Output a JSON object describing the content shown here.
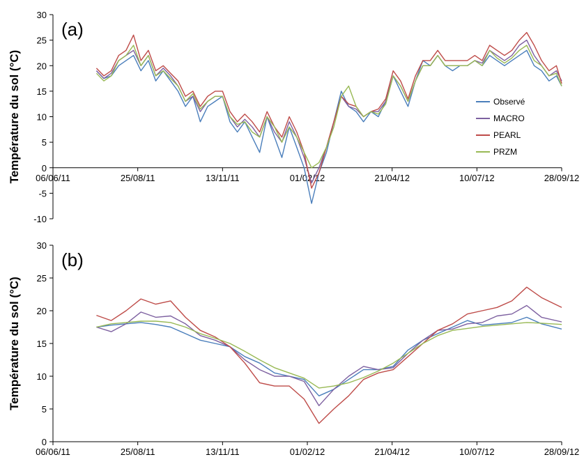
{
  "colors": {
    "observe": "#4a7ebb",
    "macro": "#7d60a0",
    "pearl": "#be4b48",
    "przm": "#98b954"
  },
  "chart_data": [
    {
      "type": "line",
      "panel_label": "(a)",
      "title": "",
      "xlabel": "",
      "ylabel": "Température du sol (°C)",
      "x_tick_labels": [
        "06/06/11",
        "25/08/11",
        "13/11/11",
        "01/02/12",
        "21/04/12",
        "10/07/12",
        "28/09/12"
      ],
      "x_tick_dates": [
        "2011-06-06",
        "2011-08-25",
        "2011-11-13",
        "2012-02-01",
        "2012-04-21",
        "2012-07-10",
        "2012-09-28"
      ],
      "ylim": [
        -10,
        30
      ],
      "y_ticks": [
        -10,
        -5,
        0,
        5,
        10,
        15,
        20,
        25,
        30
      ],
      "legend": {
        "position": "right",
        "entries": [
          "Observé",
          "MACRO",
          "PEARL",
          "PRZM"
        ]
      },
      "series": [
        {
          "name": "Observé",
          "color_key": "observe",
          "x": [
            "2011-07-17",
            "2011-07-24",
            "2011-07-31",
            "2011-08-07",
            "2011-08-14",
            "2011-08-21",
            "2011-08-28",
            "2011-09-04",
            "2011-09-11",
            "2011-09-18",
            "2011-09-25",
            "2011-10-02",
            "2011-10-09",
            "2011-10-16",
            "2011-10-23",
            "2011-10-30",
            "2011-11-06",
            "2011-11-13",
            "2011-11-20",
            "2011-11-27",
            "2011-12-04",
            "2011-12-11",
            "2011-12-18",
            "2011-12-25",
            "2012-01-01",
            "2012-01-08",
            "2012-01-15",
            "2012-01-22",
            "2012-01-29",
            "2012-02-05",
            "2012-02-12",
            "2012-02-19",
            "2012-02-26",
            "2012-03-04",
            "2012-03-11",
            "2012-03-18",
            "2012-03-25",
            "2012-04-01",
            "2012-04-08",
            "2012-04-15",
            "2012-04-22",
            "2012-04-29",
            "2012-05-06",
            "2012-05-13",
            "2012-05-20",
            "2012-05-27",
            "2012-06-03",
            "2012-06-10",
            "2012-06-17",
            "2012-06-24",
            "2012-07-01",
            "2012-07-08",
            "2012-07-15",
            "2012-07-22",
            "2012-07-29",
            "2012-08-05",
            "2012-08-12",
            "2012-08-19",
            "2012-08-26",
            "2012-09-02",
            "2012-09-09",
            "2012-09-16",
            "2012-09-23",
            "2012-09-28"
          ],
          "y": [
            19,
            17.5,
            18,
            20,
            21,
            22,
            19,
            21,
            17,
            19,
            17,
            15,
            12,
            14,
            9,
            12,
            13,
            14,
            9,
            7,
            9,
            6,
            3,
            10,
            6,
            2,
            8,
            4,
            0,
            -7,
            -1,
            3,
            9,
            15,
            12,
            11,
            9,
            11,
            10,
            13,
            18,
            15,
            12,
            17,
            21,
            20,
            22,
            20,
            19,
            20,
            20,
            21,
            20,
            22,
            21,
            20,
            21,
            22,
            23,
            20,
            19,
            17,
            18,
            16
          ]
        },
        {
          "name": "MACRO",
          "color_key": "macro",
          "x": [
            "2011-07-17",
            "2011-07-24",
            "2011-07-31",
            "2011-08-07",
            "2011-08-14",
            "2011-08-21",
            "2011-08-28",
            "2011-09-04",
            "2011-09-11",
            "2011-09-18",
            "2011-09-25",
            "2011-10-02",
            "2011-10-09",
            "2011-10-16",
            "2011-10-23",
            "2011-10-30",
            "2011-11-06",
            "2011-11-13",
            "2011-11-20",
            "2011-11-27",
            "2011-12-04",
            "2011-12-11",
            "2011-12-18",
            "2011-12-25",
            "2012-01-01",
            "2012-01-08",
            "2012-01-15",
            "2012-01-22",
            "2012-01-29",
            "2012-02-05",
            "2012-02-12",
            "2012-02-19",
            "2012-02-26",
            "2012-03-04",
            "2012-03-11",
            "2012-03-18",
            "2012-03-25",
            "2012-04-01",
            "2012-04-08",
            "2012-04-15",
            "2012-04-22",
            "2012-04-29",
            "2012-05-06",
            "2012-05-13",
            "2012-05-20",
            "2012-05-27",
            "2012-06-03",
            "2012-06-10",
            "2012-06-17",
            "2012-06-24",
            "2012-07-01",
            "2012-07-08",
            "2012-07-15",
            "2012-07-22",
            "2012-07-29",
            "2012-08-05",
            "2012-08-12",
            "2012-08-19",
            "2012-08-26",
            "2012-09-02",
            "2012-09-09",
            "2012-09-16",
            "2012-09-23",
            "2012-09-28"
          ],
          "y": [
            19,
            17.5,
            18.5,
            21,
            22,
            23,
            20,
            22,
            18,
            19.5,
            18,
            16,
            13,
            14,
            11,
            13,
            14,
            14,
            10,
            8,
            9.5,
            8,
            6,
            10,
            7,
            5,
            9,
            6,
            2,
            -3,
            0,
            4,
            9,
            14,
            12,
            11.5,
            10,
            11,
            11,
            13,
            18,
            16,
            13,
            17,
            20,
            20,
            22,
            20,
            20,
            20,
            20,
            21,
            20.5,
            23,
            22,
            21,
            22,
            24,
            25,
            22,
            20,
            18,
            19,
            17
          ]
        },
        {
          "name": "PEARL",
          "color_key": "pearl",
          "x": [
            "2011-07-17",
            "2011-07-24",
            "2011-07-31",
            "2011-08-07",
            "2011-08-14",
            "2011-08-21",
            "2011-08-28",
            "2011-09-04",
            "2011-09-11",
            "2011-09-18",
            "2011-09-25",
            "2011-10-02",
            "2011-10-09",
            "2011-10-16",
            "2011-10-23",
            "2011-10-30",
            "2011-11-06",
            "2011-11-13",
            "2011-11-20",
            "2011-11-27",
            "2011-12-04",
            "2011-12-11",
            "2011-12-18",
            "2011-12-25",
            "2012-01-01",
            "2012-01-08",
            "2012-01-15",
            "2012-01-22",
            "2012-01-29",
            "2012-02-05",
            "2012-02-12",
            "2012-02-19",
            "2012-02-26",
            "2012-03-04",
            "2012-03-11",
            "2012-03-18",
            "2012-03-25",
            "2012-04-01",
            "2012-04-08",
            "2012-04-15",
            "2012-04-22",
            "2012-04-29",
            "2012-05-06",
            "2012-05-13",
            "2012-05-20",
            "2012-05-27",
            "2012-06-03",
            "2012-06-10",
            "2012-06-17",
            "2012-06-24",
            "2012-07-01",
            "2012-07-08",
            "2012-07-15",
            "2012-07-22",
            "2012-07-29",
            "2012-08-05",
            "2012-08-12",
            "2012-08-19",
            "2012-08-26",
            "2012-09-02",
            "2012-09-09",
            "2012-09-16",
            "2012-09-23",
            "2012-09-28"
          ],
          "y": [
            19.5,
            18,
            19,
            22,
            23,
            26,
            21,
            23,
            19,
            20,
            18.5,
            17,
            14,
            15,
            12,
            14,
            15,
            15,
            11,
            9,
            10.5,
            9,
            7,
            11,
            8,
            6,
            10,
            7,
            3,
            -4,
            -1,
            4,
            9,
            14,
            12.5,
            12,
            10,
            11,
            11.5,
            13.5,
            19,
            17,
            13.5,
            18,
            21,
            21,
            23,
            21,
            21,
            21,
            21,
            22,
            21,
            24,
            23,
            22,
            23,
            25,
            26.5,
            24,
            21,
            19,
            20,
            16.5
          ]
        },
        {
          "name": "PRZM",
          "color_key": "przm",
          "x": [
            "2011-07-17",
            "2011-07-24",
            "2011-07-31",
            "2011-08-07",
            "2011-08-14",
            "2011-08-21",
            "2011-08-28",
            "2011-09-04",
            "2011-09-11",
            "2011-09-18",
            "2011-09-25",
            "2011-10-02",
            "2011-10-09",
            "2011-10-16",
            "2011-10-23",
            "2011-10-30",
            "2011-11-06",
            "2011-11-13",
            "2011-11-20",
            "2011-11-27",
            "2011-12-04",
            "2011-12-11",
            "2011-12-18",
            "2011-12-25",
            "2012-01-01",
            "2012-01-08",
            "2012-01-15",
            "2012-01-22",
            "2012-01-29",
            "2012-02-05",
            "2012-02-12",
            "2012-02-19",
            "2012-02-26",
            "2012-03-04",
            "2012-03-11",
            "2012-03-18",
            "2012-03-25",
            "2012-04-01",
            "2012-04-08",
            "2012-04-15",
            "2012-04-22",
            "2012-04-29",
            "2012-05-06",
            "2012-05-13",
            "2012-05-20",
            "2012-05-27",
            "2012-06-03",
            "2012-06-10",
            "2012-06-17",
            "2012-06-24",
            "2012-07-01",
            "2012-07-08",
            "2012-07-15",
            "2012-07-22",
            "2012-07-29",
            "2012-08-05",
            "2012-08-12",
            "2012-08-19",
            "2012-08-26",
            "2012-09-02",
            "2012-09-09",
            "2012-09-16",
            "2012-09-23",
            "2012-09-28"
          ],
          "y": [
            18.5,
            17,
            18,
            21,
            22,
            24,
            20,
            22,
            18,
            19,
            17.5,
            16,
            13,
            14.5,
            11.5,
            13,
            14,
            14,
            10,
            8.5,
            9,
            7,
            6,
            10,
            8,
            5,
            8,
            6,
            3,
            0,
            1,
            4,
            8,
            14,
            16,
            12,
            10,
            11,
            10.5,
            12.5,
            18,
            16,
            13,
            17,
            20,
            20,
            22,
            20,
            20,
            20,
            20,
            21,
            20,
            23,
            21.5,
            20.5,
            21.5,
            23,
            24,
            21,
            20,
            18,
            18.5,
            16
          ]
        }
      ]
    },
    {
      "type": "line",
      "panel_label": "(b)",
      "title": "",
      "xlabel": "",
      "ylabel": "Température du sol (°C)",
      "x_tick_labels": [
        "06/06/11",
        "25/08/11",
        "13/11/11",
        "01/02/12",
        "21/04/12",
        "10/07/12",
        "28/09/12"
      ],
      "x_tick_dates": [
        "2011-06-06",
        "2011-08-25",
        "2011-11-13",
        "2012-02-01",
        "2012-04-21",
        "2012-07-10",
        "2012-09-28"
      ],
      "ylim": [
        0,
        30
      ],
      "y_ticks": [
        0,
        5,
        10,
        15,
        20,
        25,
        30
      ],
      "series": [
        {
          "name": "Observé",
          "color_key": "observe",
          "x": [
            "2011-07-17",
            "2011-07-31",
            "2011-08-14",
            "2011-08-28",
            "2011-09-11",
            "2011-09-25",
            "2011-10-09",
            "2011-10-23",
            "2011-11-06",
            "2011-11-20",
            "2011-12-04",
            "2011-12-18",
            "2012-01-01",
            "2012-01-15",
            "2012-01-29",
            "2012-02-12",
            "2012-02-26",
            "2012-03-11",
            "2012-03-25",
            "2012-04-08",
            "2012-04-22",
            "2012-05-06",
            "2012-05-20",
            "2012-06-03",
            "2012-06-17",
            "2012-07-01",
            "2012-07-15",
            "2012-07-29",
            "2012-08-12",
            "2012-08-26",
            "2012-09-09",
            "2012-09-28"
          ],
          "y": [
            17.5,
            17.8,
            18,
            18.2,
            17.9,
            17.5,
            16.5,
            15.5,
            15,
            14.5,
            13,
            12,
            10.5,
            10,
            9.5,
            7,
            8,
            9.5,
            11,
            11,
            11.5,
            14,
            15.5,
            16.5,
            17.5,
            18.5,
            17.8,
            18,
            18.2,
            19,
            18,
            17.2
          ]
        },
        {
          "name": "MACRO",
          "color_key": "macro",
          "x": [
            "2011-07-17",
            "2011-07-31",
            "2011-08-14",
            "2011-08-28",
            "2011-09-11",
            "2011-09-25",
            "2011-10-09",
            "2011-10-23",
            "2011-11-06",
            "2011-11-20",
            "2011-12-04",
            "2011-12-18",
            "2012-01-01",
            "2012-01-15",
            "2012-01-29",
            "2012-02-12",
            "2012-02-26",
            "2012-03-11",
            "2012-03-25",
            "2012-04-08",
            "2012-04-22",
            "2012-05-06",
            "2012-05-20",
            "2012-06-03",
            "2012-06-17",
            "2012-07-01",
            "2012-07-15",
            "2012-07-29",
            "2012-08-12",
            "2012-08-26",
            "2012-09-09",
            "2012-09-28"
          ],
          "y": [
            17.5,
            16.8,
            18,
            19.8,
            19,
            19.2,
            18,
            16.2,
            15.5,
            14.5,
            12.5,
            11,
            10,
            10,
            9.2,
            5.5,
            8,
            10,
            11.5,
            11,
            11.3,
            13.5,
            15.5,
            17,
            17.2,
            18,
            18.2,
            19.2,
            19.5,
            20.8,
            19,
            18.3
          ]
        },
        {
          "name": "PEARL",
          "color_key": "pearl",
          "x": [
            "2011-07-17",
            "2011-07-31",
            "2011-08-14",
            "2011-08-28",
            "2011-09-11",
            "2011-09-25",
            "2011-10-09",
            "2011-10-23",
            "2011-11-06",
            "2011-11-20",
            "2011-12-04",
            "2011-12-18",
            "2012-01-01",
            "2012-01-15",
            "2012-01-29",
            "2012-02-12",
            "2012-02-26",
            "2012-03-11",
            "2012-03-25",
            "2012-04-08",
            "2012-04-22",
            "2012-05-06",
            "2012-05-20",
            "2012-06-03",
            "2012-06-17",
            "2012-07-01",
            "2012-07-15",
            "2012-07-29",
            "2012-08-12",
            "2012-08-26",
            "2012-09-09",
            "2012-09-28"
          ],
          "y": [
            19.3,
            18.5,
            20,
            21.8,
            21,
            21.5,
            19,
            17,
            16,
            14.5,
            12,
            9,
            8.5,
            8.5,
            6.5,
            2.8,
            5,
            7,
            9.5,
            10.5,
            11,
            13,
            15,
            17,
            18,
            19.5,
            20,
            20.5,
            21.5,
            23.6,
            22,
            20.5
          ]
        },
        {
          "name": "PRZM",
          "color_key": "przm",
          "x": [
            "2011-07-17",
            "2011-07-31",
            "2011-08-14",
            "2011-08-28",
            "2011-09-11",
            "2011-09-25",
            "2011-10-09",
            "2011-10-23",
            "2011-11-06",
            "2011-11-20",
            "2011-12-04",
            "2011-12-18",
            "2012-01-01",
            "2012-01-15",
            "2012-01-29",
            "2012-02-12",
            "2012-02-26",
            "2012-03-11",
            "2012-03-25",
            "2012-04-08",
            "2012-04-22",
            "2012-05-06",
            "2012-05-20",
            "2012-06-03",
            "2012-06-17",
            "2012-07-01",
            "2012-07-15",
            "2012-07-29",
            "2012-08-12",
            "2012-08-26",
            "2012-09-09",
            "2012-09-28"
          ],
          "y": [
            17.5,
            18,
            18.2,
            18.4,
            18.4,
            18.2,
            17.5,
            16.5,
            15.8,
            15,
            13.8,
            12.5,
            11.3,
            10.5,
            9.7,
            8.2,
            8.5,
            9,
            9.8,
            10.8,
            12,
            13.5,
            15,
            16.2,
            17,
            17.3,
            17.6,
            17.8,
            18,
            18.2,
            18.1,
            17.9
          ]
        }
      ]
    }
  ]
}
